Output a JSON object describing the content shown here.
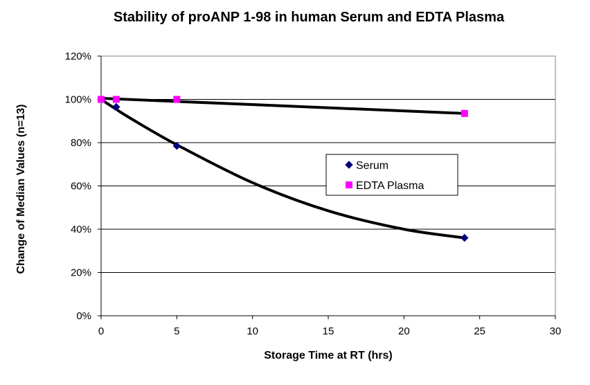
{
  "chart_data": {
    "type": "scatter",
    "title": "Stability of proANP 1-98 in human Serum and EDTA Plasma",
    "xlabel": "Storage Time at RT (hrs)",
    "ylabel": "Change of Median Values (n=13)",
    "xlim": [
      0,
      30
    ],
    "ylim": [
      0,
      120
    ],
    "xticks": [
      "0",
      "5",
      "10",
      "15",
      "20",
      "25",
      "30"
    ],
    "yticks": [
      "0%",
      "20%",
      "40%",
      "60%",
      "80%",
      "100%",
      "120%"
    ],
    "grid": "horizontal",
    "legend_position": "center-right",
    "series": [
      {
        "name": "Serum",
        "marker": "diamond",
        "color": "#000080",
        "x": [
          0,
          1,
          5,
          24
        ],
        "y": [
          100,
          96.5,
          78.5,
          36
        ],
        "trendline": {
          "type": "polynomial",
          "x": [
            0,
            1,
            2,
            5,
            10,
            15,
            20,
            24
          ],
          "y": [
            100,
            95.4,
            91,
            79,
            61.5,
            48.5,
            40,
            36
          ]
        }
      },
      {
        "name": "EDTA Plasma",
        "marker": "square",
        "color": "#ff00ff",
        "x": [
          0,
          1,
          5,
          24
        ],
        "y": [
          100,
          100,
          100,
          93.5
        ],
        "trendline": {
          "type": "linear",
          "x": [
            0,
            24
          ],
          "y": [
            100.5,
            93.5
          ]
        }
      }
    ]
  }
}
